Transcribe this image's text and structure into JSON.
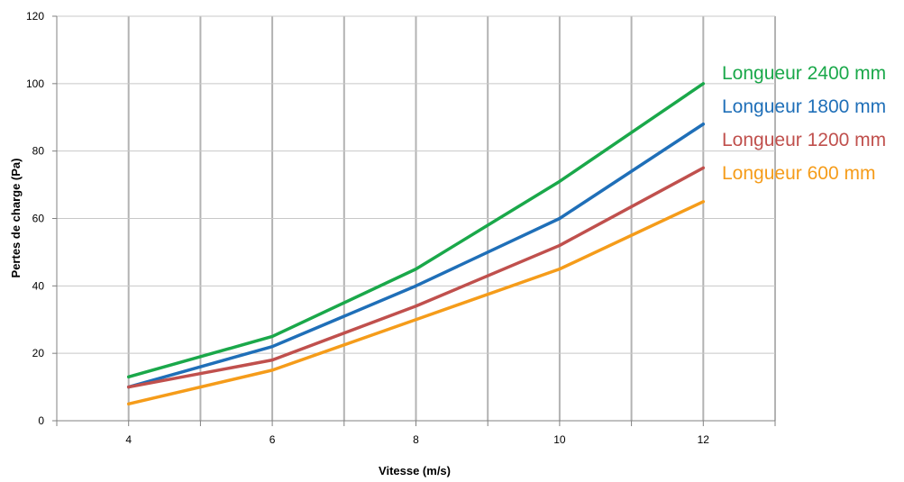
{
  "chart_data": {
    "type": "line",
    "title": "",
    "xlabel": "Vitesse (m/s)",
    "ylabel": "Pertes de charge (Pa)",
    "x": [
      4,
      6,
      8,
      10,
      12
    ],
    "x_ticks": [
      4,
      6,
      8,
      10,
      12
    ],
    "xlim": [
      3,
      13
    ],
    "ylim": [
      0,
      120
    ],
    "y_ticks": [
      0,
      20,
      40,
      60,
      80,
      100,
      120
    ],
    "grid": true,
    "legend_position": "right",
    "series": [
      {
        "name": "Longueur 2400 mm",
        "color": "#1aa84a",
        "values": [
          13,
          25,
          45,
          71,
          100
        ]
      },
      {
        "name": "Longueur 1800 mm",
        "color": "#1f6fb8",
        "values": [
          10,
          22,
          40,
          60,
          88
        ]
      },
      {
        "name": "Longueur 1200 mm",
        "color": "#c0504d",
        "values": [
          10,
          18,
          34,
          52,
          75
        ]
      },
      {
        "name": "Longueur 600 mm",
        "color": "#f59c1a",
        "values": [
          5,
          15,
          30,
          45,
          65
        ]
      }
    ]
  }
}
